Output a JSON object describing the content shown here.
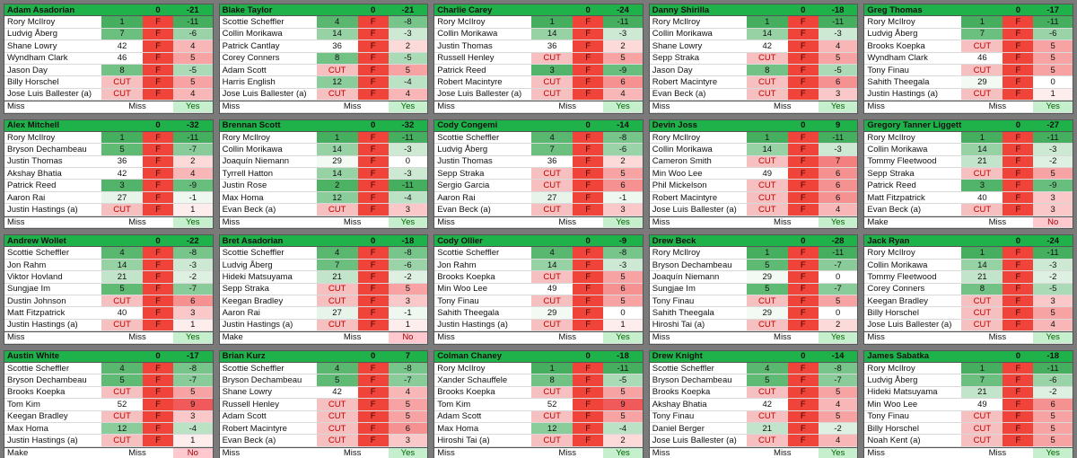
{
  "panels": [
    {
      "name": "Adam Asadorian",
      "par": 0,
      "total": -21,
      "golfers": [
        [
          "Rory McIlroy",
          1,
          "F",
          -11
        ],
        [
          "Ludvig Åberg",
          7,
          "F",
          -6
        ],
        [
          "Shane Lowry",
          42,
          "F",
          4
        ],
        [
          "Wyndham Clark",
          46,
          "F",
          5
        ],
        [
          "Jason Day",
          8,
          "F",
          -5
        ],
        [
          "Billy Horschel",
          "CUT",
          "F",
          5
        ],
        [
          "Jose Luis Ballester (a)",
          "CUT",
          "F",
          4
        ]
      ],
      "footer": [
        "Miss",
        "Miss",
        "Yes"
      ]
    },
    {
      "name": "Blake Taylor",
      "par": 0,
      "total": -21,
      "golfers": [
        [
          "Scottie Scheffler",
          4,
          "F",
          -8
        ],
        [
          "Collin Morikawa",
          14,
          "F",
          -3
        ],
        [
          "Patrick Cantlay",
          36,
          "F",
          2
        ],
        [
          "Corey Conners",
          8,
          "F",
          -5
        ],
        [
          "Adam Scott",
          "CUT",
          "F",
          5
        ],
        [
          "Harris English",
          12,
          "F",
          -4
        ],
        [
          "Jose Luis Ballester (a)",
          "CUT",
          "F",
          4
        ]
      ],
      "footer": [
        "Miss",
        "Miss",
        "Yes"
      ]
    },
    {
      "name": "Charlie Carey",
      "par": 0,
      "total": -24,
      "golfers": [
        [
          "Rory McIlroy",
          1,
          "F",
          -11
        ],
        [
          "Collin Morikawa",
          14,
          "F",
          -3
        ],
        [
          "Justin Thomas",
          36,
          "F",
          2
        ],
        [
          "Russell Henley",
          "CUT",
          "F",
          5
        ],
        [
          "Patrick Reed",
          3,
          "F",
          -9
        ],
        [
          "Robert Macintyre",
          "CUT",
          "F",
          6
        ],
        [
          "Jose Luis Ballester (a)",
          "CUT",
          "F",
          4
        ]
      ],
      "footer": [
        "Miss",
        "Miss",
        "Yes"
      ]
    },
    {
      "name": "Danny Shirilla",
      "par": 0,
      "total": -18,
      "golfers": [
        [
          "Rory McIlroy",
          1,
          "F",
          -11
        ],
        [
          "Collin Morikawa",
          14,
          "F",
          -3
        ],
        [
          "Shane Lowry",
          42,
          "F",
          4
        ],
        [
          "Sepp Straka",
          "CUT",
          "F",
          5
        ],
        [
          "Jason Day",
          8,
          "F",
          -5
        ],
        [
          "Robert Macintyre",
          "CUT",
          "F",
          6
        ],
        [
          "Evan Beck (a)",
          "CUT",
          "F",
          3
        ]
      ],
      "footer": [
        "Miss",
        "Miss",
        "Yes"
      ]
    },
    {
      "name": "Greg Thomas",
      "par": 0,
      "total": -17,
      "golfers": [
        [
          "Rory McIlroy",
          1,
          "F",
          -11
        ],
        [
          "Ludvig Åberg",
          7,
          "F",
          -6
        ],
        [
          "Brooks Koepka",
          "CUT",
          "F",
          5
        ],
        [
          "Wyndham Clark",
          46,
          "F",
          5
        ],
        [
          "Tony Finau",
          "CUT",
          "F",
          5
        ],
        [
          "Sahith Theegala",
          29,
          "F",
          0
        ],
        [
          "Justin Hastings (a)",
          "CUT",
          "F",
          1
        ]
      ],
      "footer": [
        "Miss",
        "Miss",
        "Yes"
      ]
    },
    {
      "name": "Alex Mitchell",
      "par": 0,
      "total": -32,
      "golfers": [
        [
          "Rory McIlroy",
          1,
          "F",
          -11
        ],
        [
          "Bryson Dechambeau",
          5,
          "F",
          -7
        ],
        [
          "Justin Thomas",
          36,
          "F",
          2
        ],
        [
          "Akshay Bhatia",
          42,
          "F",
          4
        ],
        [
          "Patrick Reed",
          3,
          "F",
          -9
        ],
        [
          "Aaron Rai",
          27,
          "F",
          -1
        ],
        [
          "Justin Hastings (a)",
          "CUT",
          "F",
          1
        ]
      ],
      "footer": [
        "Miss",
        "Miss",
        "Yes"
      ]
    },
    {
      "name": "Brennan Scott",
      "par": 0,
      "total": -32,
      "golfers": [
        [
          "Rory McIlroy",
          1,
          "F",
          -11
        ],
        [
          "Collin Morikawa",
          14,
          "F",
          -3
        ],
        [
          "Joaquín Niemann",
          29,
          "F",
          0
        ],
        [
          "Tyrrell Hatton",
          14,
          "F",
          -3
        ],
        [
          "Justin Rose",
          2,
          "F",
          -11
        ],
        [
          "Max Homa",
          12,
          "F",
          -4
        ],
        [
          "Evan Beck (a)",
          "CUT",
          "F",
          3
        ]
      ],
      "footer": [
        "Miss",
        "Miss",
        "Yes"
      ]
    },
    {
      "name": "Cody Congemi",
      "par": 0,
      "total": -14,
      "golfers": [
        [
          "Scottie Scheffler",
          4,
          "F",
          -8
        ],
        [
          "Ludvig Åberg",
          7,
          "F",
          -6
        ],
        [
          "Justin Thomas",
          36,
          "F",
          2
        ],
        [
          "Sepp Straka",
          "CUT",
          "F",
          5
        ],
        [
          "Sergio Garcia",
          "CUT",
          "F",
          6
        ],
        [
          "Aaron Rai",
          27,
          "F",
          -1
        ],
        [
          "Evan Beck (a)",
          "CUT",
          "F",
          3
        ]
      ],
      "footer": [
        "Miss",
        "Miss",
        "Yes"
      ]
    },
    {
      "name": "Devin Joss",
      "par": 0,
      "total": 9,
      "golfers": [
        [
          "Rory McIlroy",
          1,
          "F",
          -11
        ],
        [
          "Collin Morikawa",
          14,
          "F",
          -3
        ],
        [
          "Cameron Smith",
          "CUT",
          "F",
          7
        ],
        [
          "Min Woo Lee",
          49,
          "F",
          6
        ],
        [
          "Phil Mickelson",
          "CUT",
          "F",
          6
        ],
        [
          "Robert Macintyre",
          "CUT",
          "F",
          6
        ],
        [
          "Jose Luis Ballester (a)",
          "CUT",
          "F",
          4
        ]
      ],
      "footer": [
        "Miss",
        "Miss",
        "Yes"
      ]
    },
    {
      "name": "Gregory Tanner Liggett",
      "par": 0,
      "total": -27,
      "golfers": [
        [
          "Rory McIlroy",
          1,
          "F",
          -11
        ],
        [
          "Collin Morikawa",
          14,
          "F",
          -3
        ],
        [
          "Tommy Fleetwood",
          21,
          "F",
          -2
        ],
        [
          "Sepp Straka",
          "CUT",
          "F",
          5
        ],
        [
          "Patrick Reed",
          3,
          "F",
          -9
        ],
        [
          "Matt Fitzpatrick",
          40,
          "F",
          3
        ],
        [
          "Evan Beck (a)",
          "CUT",
          "F",
          3
        ]
      ],
      "footer": [
        "Make",
        "Miss",
        "No"
      ]
    },
    {
      "name": "Andrew Wollet",
      "par": 0,
      "total": -22,
      "golfers": [
        [
          "Scottie Scheffler",
          4,
          "F",
          -8
        ],
        [
          "Jon Rahm",
          14,
          "F",
          -3
        ],
        [
          "Viktor Hovland",
          21,
          "F",
          -2
        ],
        [
          "Sungjae Im",
          5,
          "F",
          -7
        ],
        [
          "Dustin Johnson",
          "CUT",
          "F",
          6
        ],
        [
          "Matt Fitzpatrick",
          40,
          "F",
          3
        ],
        [
          "Justin Hastings (a)",
          "CUT",
          "F",
          1
        ]
      ],
      "footer": [
        "Miss",
        "Miss",
        "Yes"
      ]
    },
    {
      "name": "Bret Asadorian",
      "par": 0,
      "total": -18,
      "golfers": [
        [
          "Scottie Scheffler",
          4,
          "F",
          -8
        ],
        [
          "Ludvig Åberg",
          7,
          "F",
          -6
        ],
        [
          "Hideki Matsuyama",
          21,
          "F",
          -2
        ],
        [
          "Sepp Straka",
          "CUT",
          "F",
          5
        ],
        [
          "Keegan Bradley",
          "CUT",
          "F",
          3
        ],
        [
          "Aaron Rai",
          27,
          "F",
          -1
        ],
        [
          "Justin Hastings (a)",
          "CUT",
          "F",
          1
        ]
      ],
      "footer": [
        "Make",
        "Miss",
        "No"
      ]
    },
    {
      "name": "Cody Ollier",
      "par": 0,
      "total": -9,
      "golfers": [
        [
          "Scottie Scheffler",
          4,
          "F",
          -8
        ],
        [
          "Jon Rahm",
          14,
          "F",
          -3
        ],
        [
          "Brooks Koepka",
          "CUT",
          "F",
          5
        ],
        [
          "Min Woo Lee",
          49,
          "F",
          6
        ],
        [
          "Tony Finau",
          "CUT",
          "F",
          5
        ],
        [
          "Sahith Theegala",
          29,
          "F",
          0
        ],
        [
          "Justin Hastings (a)",
          "CUT",
          "F",
          1
        ]
      ],
      "footer": [
        "Miss",
        "Miss",
        "Yes"
      ]
    },
    {
      "name": "Drew Beck",
      "par": 0,
      "total": -28,
      "golfers": [
        [
          "Rory McIlroy",
          1,
          "F",
          -11
        ],
        [
          "Bryson Dechambeau",
          5,
          "F",
          -7
        ],
        [
          "Joaquín Niemann",
          29,
          "F",
          0
        ],
        [
          "Sungjae Im",
          5,
          "F",
          -7
        ],
        [
          "Tony Finau",
          "CUT",
          "F",
          5
        ],
        [
          "Sahith Theegala",
          29,
          "F",
          0
        ],
        [
          "Hiroshi Tai (a)",
          "CUT",
          "F",
          2
        ]
      ],
      "footer": [
        "Miss",
        "Miss",
        "Yes"
      ]
    },
    {
      "name": "Jack Ryan",
      "par": 0,
      "total": -24,
      "golfers": [
        [
          "Rory McIlroy",
          1,
          "F",
          -11
        ],
        [
          "Collin Morikawa",
          14,
          "F",
          -3
        ],
        [
          "Tommy Fleetwood",
          21,
          "F",
          -2
        ],
        [
          "Corey Conners",
          8,
          "F",
          -5
        ],
        [
          "Keegan Bradley",
          "CUT",
          "F",
          3
        ],
        [
          "Billy Horschel",
          "CUT",
          "F",
          5
        ],
        [
          "Jose Luis Ballester (a)",
          "CUT",
          "F",
          4
        ]
      ],
      "footer": [
        "Miss",
        "Miss",
        "Yes"
      ]
    },
    {
      "name": "Austin White",
      "par": 0,
      "total": -17,
      "golfers": [
        [
          "Scottie Scheffler",
          4,
          "F",
          -8
        ],
        [
          "Bryson Dechambeau",
          5,
          "F",
          -7
        ],
        [
          "Brooks Koepka",
          "CUT",
          "F",
          5
        ],
        [
          "Tom Kim",
          52,
          "F",
          9
        ],
        [
          "Keegan Bradley",
          "CUT",
          "F",
          3
        ],
        [
          "Max Homa",
          12,
          "F",
          -4
        ],
        [
          "Justin Hastings (a)",
          "CUT",
          "F",
          1
        ]
      ],
      "footer": [
        "Make",
        "Miss",
        "No"
      ]
    },
    {
      "name": "Brian Kurz",
      "par": 0,
      "total": 7,
      "golfers": [
        [
          "Scottie Scheffler",
          4,
          "F",
          -8
        ],
        [
          "Bryson Dechambeau",
          5,
          "F",
          -7
        ],
        [
          "Shane Lowry",
          42,
          "F",
          4
        ],
        [
          "Russell Henley",
          "CUT",
          "F",
          5
        ],
        [
          "Adam Scott",
          "CUT",
          "F",
          5
        ],
        [
          "Robert Macintyre",
          "CUT",
          "F",
          6
        ],
        [
          "Evan Beck (a)",
          "CUT",
          "F",
          3
        ]
      ],
      "footer": [
        "Miss",
        "Miss",
        "Yes"
      ]
    },
    {
      "name": "Colman Chaney",
      "par": 0,
      "total": -18,
      "golfers": [
        [
          "Rory McIlroy",
          1,
          "F",
          -11
        ],
        [
          "Xander Schauffele",
          8,
          "F",
          -5
        ],
        [
          "Brooks Koepka",
          "CUT",
          "F",
          5
        ],
        [
          "Tom Kim",
          52,
          "F",
          9
        ],
        [
          "Adam Scott",
          "CUT",
          "F",
          5
        ],
        [
          "Max Homa",
          12,
          "F",
          -4
        ],
        [
          "Hiroshi Tai (a)",
          "CUT",
          "F",
          2
        ]
      ],
      "footer": [
        "Miss",
        "Miss",
        "Yes"
      ]
    },
    {
      "name": "Drew Knight",
      "par": 0,
      "total": -14,
      "golfers": [
        [
          "Scottie Scheffler",
          4,
          "F",
          -8
        ],
        [
          "Bryson Dechambeau",
          5,
          "F",
          -7
        ],
        [
          "Brooks Koepka",
          "CUT",
          "F",
          5
        ],
        [
          "Akshay Bhatia",
          42,
          "F",
          4
        ],
        [
          "Tony Finau",
          "CUT",
          "F",
          5
        ],
        [
          "Daniel Berger",
          21,
          "F",
          -2
        ],
        [
          "Jose Luis Ballester (a)",
          "CUT",
          "F",
          4
        ]
      ],
      "footer": [
        "Miss",
        "Miss",
        "Yes"
      ]
    },
    {
      "name": "James Sabatka",
      "par": 0,
      "total": -18,
      "golfers": [
        [
          "Rory McIlroy",
          1,
          "F",
          -11
        ],
        [
          "Ludvig Åberg",
          7,
          "F",
          -6
        ],
        [
          "Hideki Matsuyama",
          21,
          "F",
          -2
        ],
        [
          "Min Woo Lee",
          49,
          "F",
          6
        ],
        [
          "Tony Finau",
          "CUT",
          "F",
          5
        ],
        [
          "Billy Horschel",
          "CUT",
          "F",
          5
        ],
        [
          "Noah Kent (a)",
          "CUT",
          "F",
          5
        ]
      ],
      "footer": [
        "Miss",
        "Miss",
        "Yes"
      ]
    }
  ]
}
